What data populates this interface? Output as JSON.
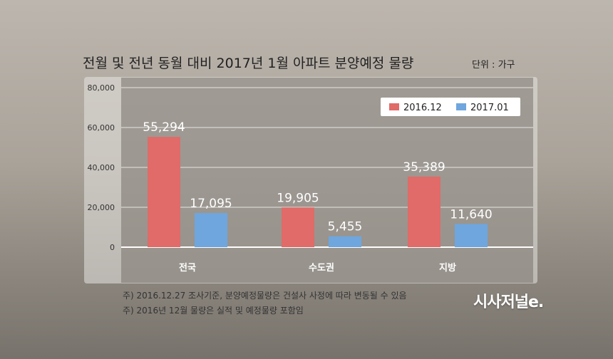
{
  "chart_data": {
    "type": "bar",
    "title": "전월 및 전년 동월 대비 2017년 1월 아파트 분양예정 물량",
    "unit_label": "단위 : 가구",
    "categories": [
      "전국",
      "수도권",
      "지방"
    ],
    "series": [
      {
        "name": "2016.12",
        "values": [
          55294,
          19905,
          35389
        ],
        "labels": [
          "55,294",
          "19,905",
          "35,389"
        ],
        "color": "#e06b68"
      },
      {
        "name": "2017.01",
        "values": [
          17095,
          5455,
          11640
        ],
        "labels": [
          "17,095",
          "5,455",
          "11,640"
        ],
        "color": "#6fa6de"
      }
    ],
    "ylim": [
      0,
      80000
    ],
    "yticks": [
      0,
      20000,
      40000,
      60000,
      80000
    ],
    "ytick_labels": [
      "0",
      "20,000",
      "40,000",
      "60,000",
      "80,000"
    ],
    "grid": true,
    "legend": "top-right"
  },
  "notes": [
    "주) 2016.12.27 조사기준, 분양예정물량은 건설사 사정에 따라 변동될 수 있음",
    "주) 2016년 12월 물량은 실적 및 예정물량 포함임"
  ],
  "brand": "시사저널e."
}
